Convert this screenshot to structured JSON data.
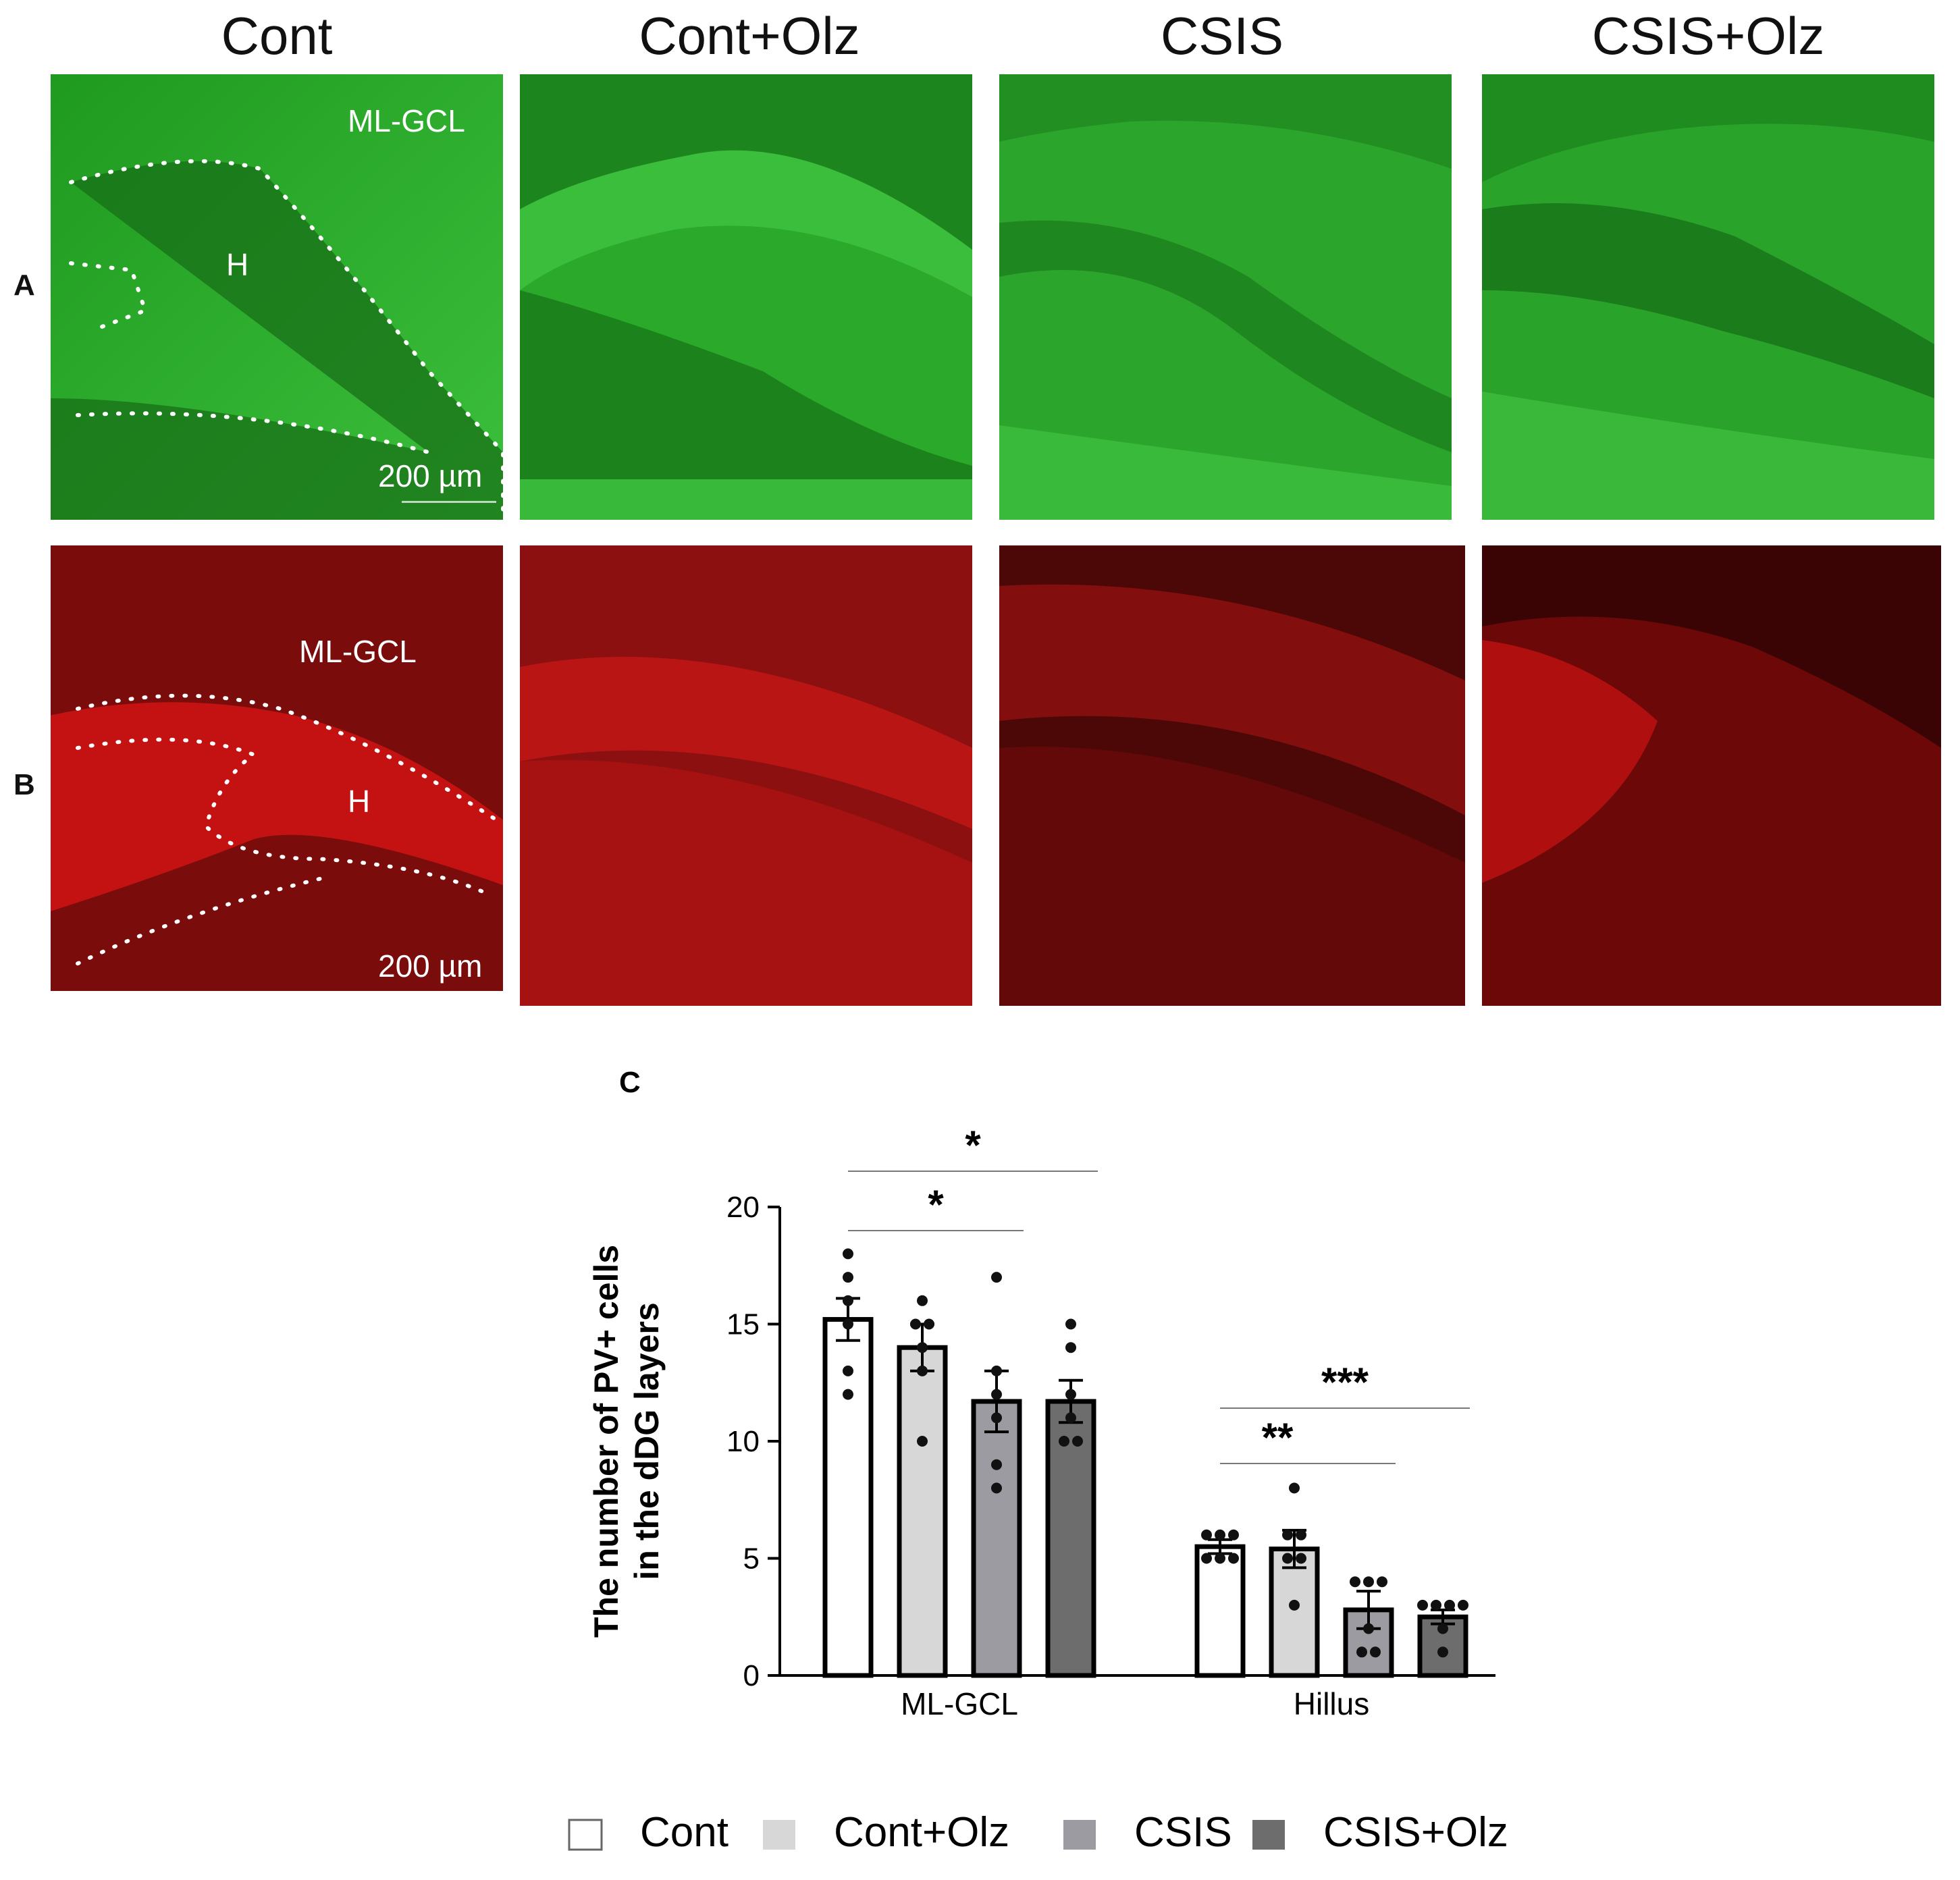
{
  "columns": [
    "Cont",
    "Cont+Olz",
    "CSIS",
    "CSIS+Olz"
  ],
  "row_labels": {
    "a": "A",
    "b": "B"
  },
  "micrographs": {
    "ml_gcl_label": "ML-GCL",
    "hilus_label": "H",
    "scale_label": "200 µm",
    "colors": {
      "green": "#2db52d",
      "red": "#d01010"
    }
  },
  "panel_c_label": "C",
  "chart_data": {
    "type": "bar",
    "categories": [
      "ML-GCL",
      "Hillus"
    ],
    "ylabel_line1": "The number of PV+ cells",
    "ylabel_line2": "in the dDG layers",
    "ylim": [
      0,
      20
    ],
    "yticks": [
      "0",
      "5",
      "10",
      "15",
      "20"
    ],
    "series": [
      {
        "name": "Cont",
        "color": "#ffffff",
        "values": [
          15.2,
          5.5
        ],
        "sem": [
          0.9,
          0.3
        ],
        "points": [
          [
            18,
            17,
            16,
            15,
            13,
            12
          ],
          [
            6,
            6,
            6,
            5,
            5,
            5
          ]
        ]
      },
      {
        "name": "Cont+Olz",
        "color": "#d7d7d7",
        "values": [
          14.0,
          5.4
        ],
        "sem": [
          1.0,
          0.8
        ],
        "points": [
          [
            16,
            15,
            15,
            14,
            13,
            10
          ],
          [
            8,
            6,
            6,
            5,
            5,
            3
          ]
        ]
      },
      {
        "name": "CSIS",
        "color": "#9b9ba1",
        "values": [
          11.7,
          2.8
        ],
        "sem": [
          1.3,
          0.8
        ],
        "points": [
          [
            17,
            13,
            12,
            11,
            9,
            8
          ],
          [
            4,
            4,
            4,
            2,
            1,
            1
          ]
        ]
      },
      {
        "name": "CSIS+Olz",
        "color": "#6d6d6d",
        "values": [
          11.7,
          2.5
        ],
        "sem": [
          0.9,
          0.3
        ],
        "points": [
          [
            15,
            14,
            12,
            11,
            10,
            10
          ],
          [
            3,
            3,
            3,
            3,
            2,
            1
          ]
        ]
      }
    ],
    "significance": [
      {
        "label": "*",
        "group": 0,
        "from": 0,
        "to": 2
      },
      {
        "label": "*",
        "group": 0,
        "from": 0,
        "to": 3
      },
      {
        "label": "**",
        "group": 1,
        "from": 0,
        "to": 2
      },
      {
        "label": "***",
        "group": 1,
        "from": 0,
        "to": 3
      }
    ],
    "legend": [
      "Cont",
      "Cont+Olz",
      "CSIS",
      "CSIS+Olz"
    ],
    "legend_position": "bottom",
    "grid": false
  }
}
